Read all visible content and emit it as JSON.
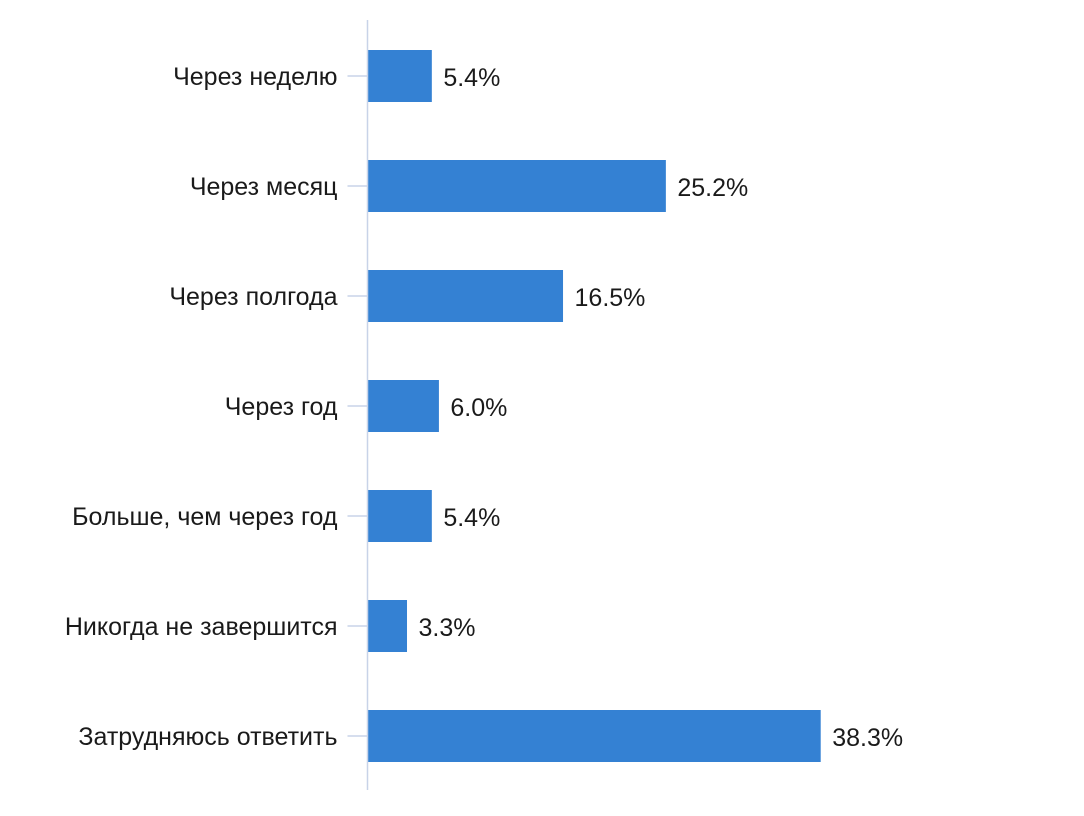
{
  "chart_data": {
    "type": "bar",
    "orientation": "horizontal",
    "title": "",
    "xlabel": "",
    "ylabel": "",
    "categories": [
      "Через неделю",
      "Через месяц",
      "Через полгода",
      "Через год",
      "Больше, чем через год",
      "Никогда не завершится",
      "Затрудняюсь ответить"
    ],
    "values": [
      5.4,
      25.2,
      16.5,
      6.0,
      5.4,
      3.3,
      38.3
    ],
    "value_labels": [
      "5.4%",
      "25.2%",
      "16.5%",
      "6.0%",
      "5.4%",
      "3.3%",
      "38.3%"
    ],
    "unit": "%",
    "xlim": [
      0,
      40
    ],
    "grid": false,
    "legend": "none",
    "bar_color": "#3481d3"
  }
}
